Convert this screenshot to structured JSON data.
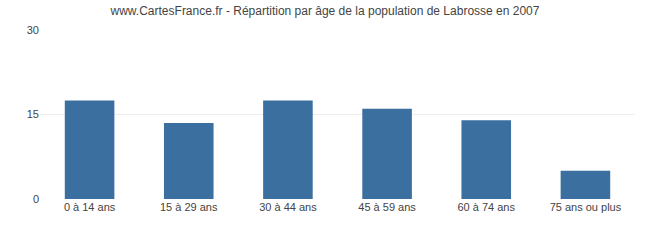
{
  "chart_data": {
    "type": "bar",
    "title": "www.CartesFrance.fr - Répartition par âge de la population de Labrosse en 2007",
    "categories": [
      "0 à 14 ans",
      "15 à 29 ans",
      "30 à 44 ans",
      "45 à 59 ans",
      "60 à 74 ans",
      "75 ans ou plus"
    ],
    "values": [
      17.5,
      13.5,
      17.5,
      16.0,
      14.0,
      5.0
    ],
    "color": "#3a6f9f",
    "ylim": [
      0,
      30
    ],
    "yticks": [
      0,
      15,
      30
    ],
    "grid": true
  }
}
